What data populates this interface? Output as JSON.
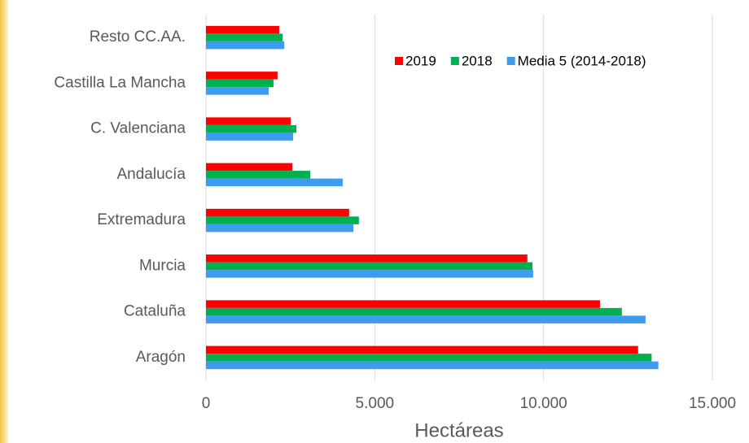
{
  "chart_data": {
    "type": "hbar",
    "xlabel": "Hectáreas",
    "categories": [
      "Resto CC.AA.",
      "Castilla La Mancha",
      "C. Valenciana",
      "Andalucía",
      "Extremadura",
      "Murcia",
      "Cataluña",
      "Aragón"
    ],
    "series": [
      {
        "name": "2019",
        "color": "#ff0000",
        "values": [
          2170,
          2120,
          2510,
          2560,
          4240,
          9520,
          11670,
          12800
        ]
      },
      {
        "name": "2018",
        "color": "#00b050",
        "values": [
          2270,
          2000,
          2680,
          3090,
          4530,
          9670,
          12320,
          13200
        ]
      },
      {
        "name": "Media 5 (2014-2018)",
        "color": "#3d9cf0",
        "values": [
          2320,
          1860,
          2580,
          4050,
          4370,
          9690,
          13020,
          13400
        ]
      }
    ],
    "xlim": [
      0,
      15000
    ],
    "xticks": [
      0,
      {
        "value": 5000,
        "label": "5.000"
      },
      {
        "value": 10000,
        "label": "10.000"
      },
      {
        "value": 15000,
        "label": "15.000"
      }
    ],
    "grid": true,
    "legend": "top-right"
  }
}
